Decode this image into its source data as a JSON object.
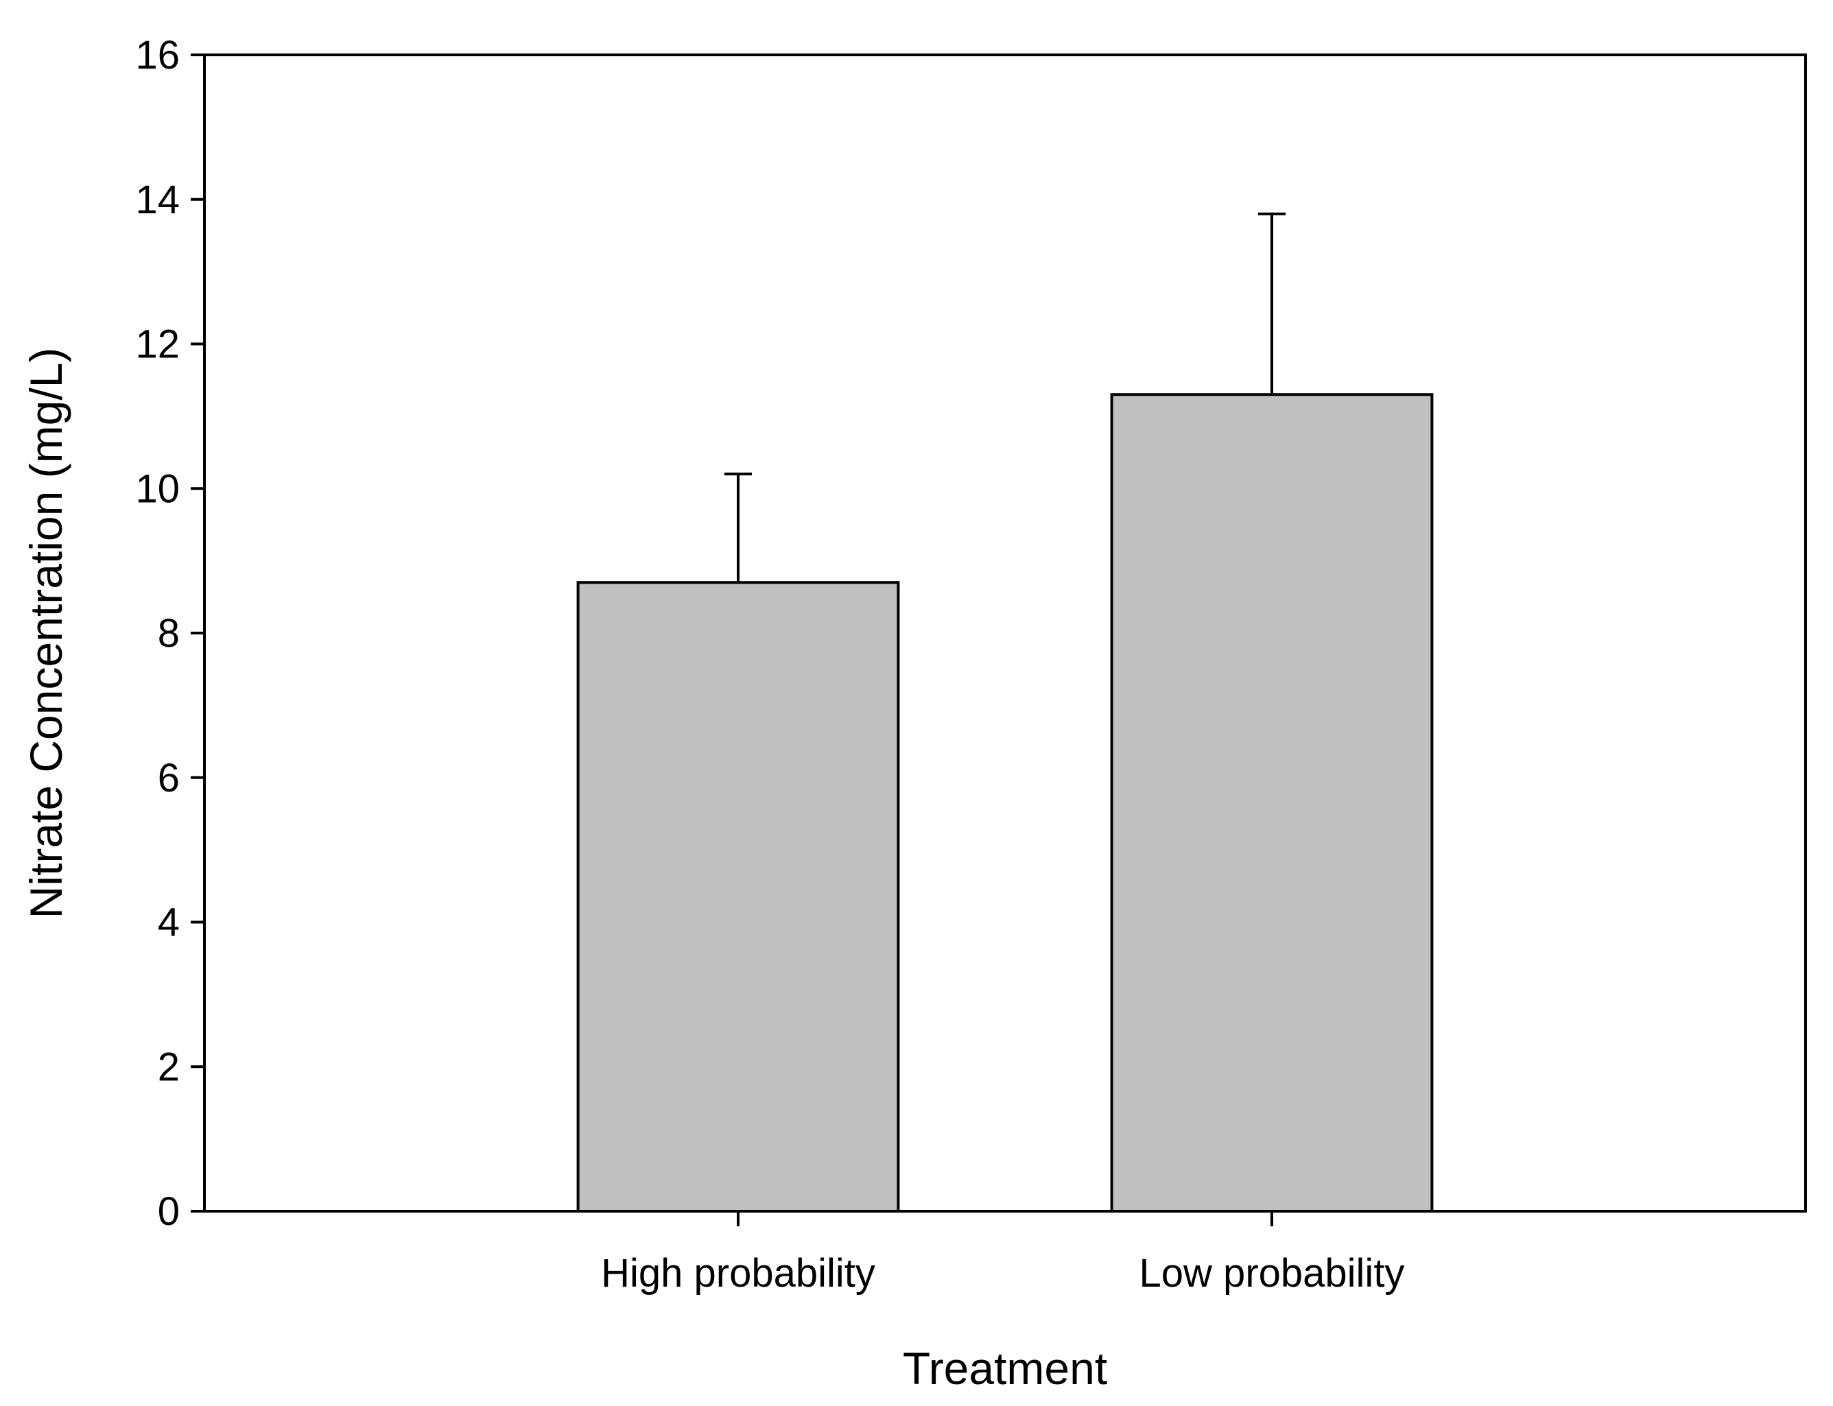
{
  "chart_data": {
    "type": "bar",
    "title": "",
    "xlabel": "Treatment",
    "ylabel": "Nitrate Concentration (mg/L)",
    "categories": [
      "High probability",
      "Low probability"
    ],
    "values": [
      8.7,
      11.3
    ],
    "error_bars_upper": [
      1.5,
      2.5
    ],
    "ylim": [
      0,
      16
    ],
    "yticks": [
      0,
      2,
      4,
      6,
      8,
      10,
      12,
      14,
      16
    ],
    "grid": false,
    "legend": "none",
    "bar_color": "#c0c0c0",
    "outline_color": "#000000"
  }
}
